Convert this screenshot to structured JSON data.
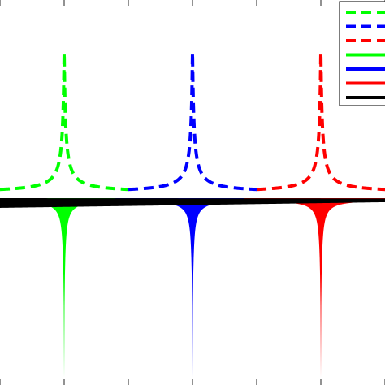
{
  "chart_data": {
    "type": "line",
    "title": "",
    "xlabel": "",
    "ylabel": "",
    "xlim": [
      -1.5,
      1.5
    ],
    "ylim": [
      -1.3,
      1.4
    ],
    "grid": false,
    "legend": {
      "position": "top-right",
      "clipped": true
    },
    "x_ticks": [
      -1.5,
      -1,
      -0.5,
      0,
      0.5,
      1,
      1.5
    ],
    "series": [
      {
        "style": "dashed",
        "color": "#00ff00",
        "peak_x": -1.0,
        "baseline": 0.05,
        "peak": 1.03,
        "sign": 1
      },
      {
        "style": "dashed",
        "color": "#0000ff",
        "peak_x": 0.0,
        "baseline": 0.05,
        "peak": 1.03,
        "sign": 1
      },
      {
        "style": "dashed",
        "color": "#ff0000",
        "peak_x": 1.0,
        "baseline": 0.05,
        "peak": 1.03,
        "sign": 1
      },
      {
        "style": "filled-oscillating",
        "color": "#00ff00",
        "peak_x": -1.0,
        "depth": -1.26,
        "sign": -1
      },
      {
        "style": "filled-oscillating",
        "color": "#0000ff",
        "peak_x": 0.0,
        "depth": -1.26,
        "sign": -1
      },
      {
        "style": "filled-oscillating",
        "color": "#ff0000",
        "peak_x": 1.0,
        "depth": -1.26,
        "sign": -1
      },
      {
        "style": "filled-oscillating",
        "color": "#000000",
        "peak_x": null,
        "depth": -0.05,
        "sign": -1
      }
    ]
  }
}
